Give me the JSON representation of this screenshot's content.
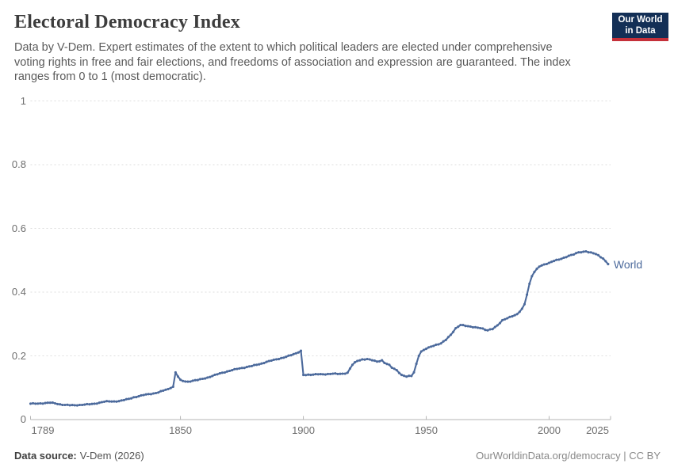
{
  "header": {
    "title": "Electoral Democracy Index",
    "subtitle_lines": [
      "Data by V-Dem. Expert estimates of the extent to which political leaders are elected under comprehensive",
      "voting rights in free and fair elections, and freedoms of association and expression are guaranteed. The index",
      "ranges from 0 to 1 (most democratic)."
    ],
    "logo": {
      "line1": "Our World",
      "line2": "in Data",
      "bg": "#132f56",
      "accent": "#c5303a"
    }
  },
  "chart_data": {
    "type": "line",
    "title": "Electoral Democracy Index",
    "xlabel": "",
    "ylabel": "",
    "xlim": [
      1789,
      2025
    ],
    "ylim": [
      0,
      1
    ],
    "grid": "horizontal-dashed",
    "x_ticks": [
      1789,
      1850,
      1900,
      1950,
      2000,
      2025
    ],
    "x_tick_labels": [
      "1789",
      "1850",
      "1900",
      "1950",
      "2000",
      "2025"
    ],
    "y_ticks": [
      0,
      0.2,
      0.4,
      0.6,
      0.8,
      1
    ],
    "y_tick_labels": [
      "0",
      "0.2",
      "0.4",
      "0.6",
      "0.8",
      "1"
    ],
    "legend_position": "end-of-line",
    "colors": {
      "grid": "#dedede",
      "axis": "#b5b5b5",
      "tick_text": "#6e6e6e"
    },
    "series": [
      {
        "name": "World",
        "color": "#4C6A9C",
        "points": [
          [
            1789,
            0.05
          ],
          [
            1791,
            0.05
          ],
          [
            1793,
            0.051
          ],
          [
            1795,
            0.052
          ],
          [
            1797,
            0.053
          ],
          [
            1799,
            0.051
          ],
          [
            1801,
            0.048
          ],
          [
            1803,
            0.046
          ],
          [
            1805,
            0.045
          ],
          [
            1807,
            0.045
          ],
          [
            1809,
            0.046
          ],
          [
            1811,
            0.047
          ],
          [
            1813,
            0.048
          ],
          [
            1815,
            0.05
          ],
          [
            1817,
            0.053
          ],
          [
            1819,
            0.056
          ],
          [
            1821,
            0.057
          ],
          [
            1823,
            0.057
          ],
          [
            1825,
            0.058
          ],
          [
            1827,
            0.061
          ],
          [
            1829,
            0.065
          ],
          [
            1831,
            0.07
          ],
          [
            1833,
            0.073
          ],
          [
            1835,
            0.077
          ],
          [
            1837,
            0.08
          ],
          [
            1839,
            0.082
          ],
          [
            1841,
            0.085
          ],
          [
            1843,
            0.091
          ],
          [
            1845,
            0.096
          ],
          [
            1846,
            0.099
          ],
          [
            1847,
            0.103
          ],
          [
            1848,
            0.148
          ],
          [
            1849,
            0.135
          ],
          [
            1850,
            0.125
          ],
          [
            1851,
            0.121
          ],
          [
            1853,
            0.119
          ],
          [
            1855,
            0.122
          ],
          [
            1857,
            0.124
          ],
          [
            1859,
            0.128
          ],
          [
            1861,
            0.132
          ],
          [
            1863,
            0.137
          ],
          [
            1865,
            0.142
          ],
          [
            1867,
            0.147
          ],
          [
            1869,
            0.151
          ],
          [
            1871,
            0.155
          ],
          [
            1873,
            0.159
          ],
          [
            1875,
            0.162
          ],
          [
            1877,
            0.165
          ],
          [
            1879,
            0.168
          ],
          [
            1881,
            0.172
          ],
          [
            1883,
            0.176
          ],
          [
            1885,
            0.181
          ],
          [
            1887,
            0.185
          ],
          [
            1889,
            0.189
          ],
          [
            1891,
            0.193
          ],
          [
            1893,
            0.197
          ],
          [
            1895,
            0.202
          ],
          [
            1897,
            0.208
          ],
          [
            1899,
            0.216
          ],
          [
            1900,
            0.14
          ],
          [
            1902,
            0.141
          ],
          [
            1904,
            0.141
          ],
          [
            1906,
            0.142
          ],
          [
            1908,
            0.142
          ],
          [
            1910,
            0.143
          ],
          [
            1912,
            0.144
          ],
          [
            1914,
            0.143
          ],
          [
            1916,
            0.144
          ],
          [
            1918,
            0.147
          ],
          [
            1919,
            0.16
          ],
          [
            1920,
            0.172
          ],
          [
            1921,
            0.18
          ],
          [
            1922,
            0.184
          ],
          [
            1924,
            0.189
          ],
          [
            1926,
            0.19
          ],
          [
            1928,
            0.186
          ],
          [
            1930,
            0.182
          ],
          [
            1932,
            0.186
          ],
          [
            1933,
            0.178
          ],
          [
            1935,
            0.172
          ],
          [
            1936,
            0.163
          ],
          [
            1938,
            0.155
          ],
          [
            1940,
            0.14
          ],
          [
            1942,
            0.135
          ],
          [
            1944,
            0.137
          ],
          [
            1945,
            0.148
          ],
          [
            1946,
            0.175
          ],
          [
            1947,
            0.2
          ],
          [
            1948,
            0.214
          ],
          [
            1950,
            0.222
          ],
          [
            1952,
            0.229
          ],
          [
            1954,
            0.235
          ],
          [
            1956,
            0.239
          ],
          [
            1958,
            0.25
          ],
          [
            1960,
            0.266
          ],
          [
            1962,
            0.287
          ],
          [
            1964,
            0.297
          ],
          [
            1966,
            0.294
          ],
          [
            1968,
            0.292
          ],
          [
            1970,
            0.29
          ],
          [
            1972,
            0.287
          ],
          [
            1975,
            0.28
          ],
          [
            1977,
            0.284
          ],
          [
            1979,
            0.296
          ],
          [
            1981,
            0.312
          ],
          [
            1983,
            0.318
          ],
          [
            1985,
            0.324
          ],
          [
            1987,
            0.331
          ],
          [
            1989,
            0.348
          ],
          [
            1990,
            0.362
          ],
          [
            1991,
            0.392
          ],
          [
            1992,
            0.426
          ],
          [
            1993,
            0.45
          ],
          [
            1994,
            0.463
          ],
          [
            1995,
            0.473
          ],
          [
            1996,
            0.48
          ],
          [
            1998,
            0.487
          ],
          [
            2000,
            0.492
          ],
          [
            2002,
            0.498
          ],
          [
            2004,
            0.502
          ],
          [
            2006,
            0.508
          ],
          [
            2008,
            0.514
          ],
          [
            2010,
            0.518
          ],
          [
            2012,
            0.525
          ],
          [
            2014,
            0.527
          ],
          [
            2015,
            0.528
          ],
          [
            2016,
            0.525
          ],
          [
            2018,
            0.522
          ],
          [
            2020,
            0.516
          ],
          [
            2022,
            0.505
          ],
          [
            2023,
            0.497
          ],
          [
            2024,
            0.488
          ]
        ]
      }
    ]
  },
  "footer": {
    "source_label": "Data source:",
    "source_value": "V-Dem (2026)",
    "credit": "OurWorldinData.org/democracy | CC BY"
  }
}
